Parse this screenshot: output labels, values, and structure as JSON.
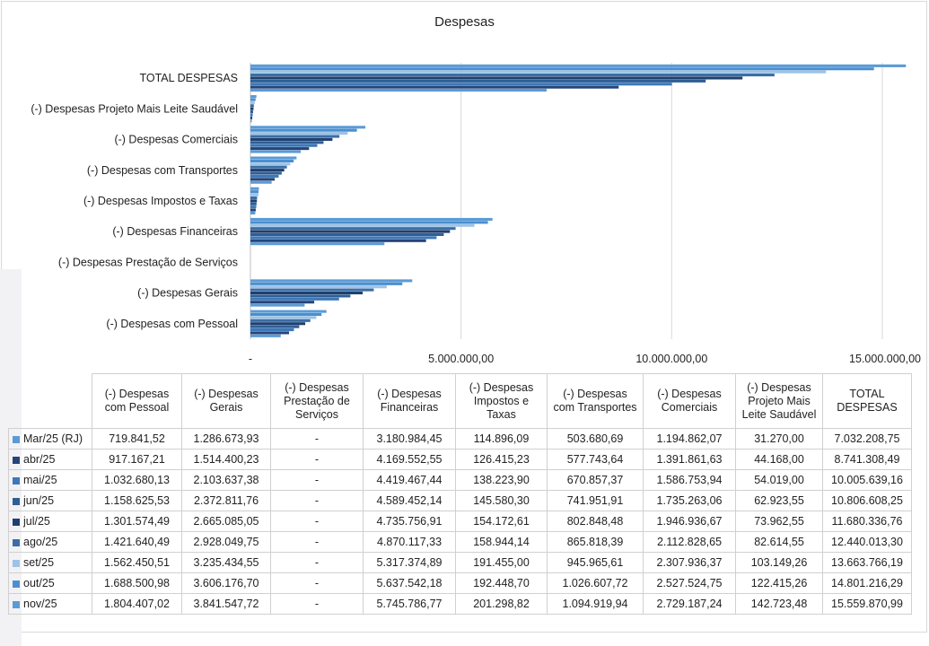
{
  "chart_data": {
    "type": "bar",
    "orientation": "horizontal",
    "title": "Despesas",
    "xlim": [
      0,
      15000000
    ],
    "x_ticks": [
      "-",
      "5.000.000,00",
      "10.000.000,00",
      "15.000.000,00"
    ],
    "x_tick_values": [
      0,
      5000000,
      10000000,
      15000000
    ],
    "grid": true,
    "legend_position": "in-table",
    "categories": [
      "(-) Despesas com Pessoal",
      "(-) Despesas Gerais",
      "(-) Despesas Prestação de Serviços",
      "(-) Despesas Financeiras",
      "(-) Despesas Impostos e Taxas",
      "(-) Despesas com Transportes",
      "(-) Despesas Comerciais",
      "(-) Despesas Projeto Mais Leite Saudável",
      "TOTAL DESPESAS"
    ],
    "series": [
      {
        "name": "Mar/25 (RJ)",
        "color": "#5b9bd5",
        "values": [
          719841.52,
          1286673.93,
          0,
          3180984.45,
          114896.09,
          503680.69,
          1194862.07,
          31270.0,
          7032208.75
        ],
        "labels": [
          "719.841,52",
          "1.286.673,93",
          "-",
          "3.180.984,45",
          "114.896,09",
          "503.680,69",
          "1.194.862,07",
          "31.270,00",
          "7.032.208,75"
        ]
      },
      {
        "name": "abr/25",
        "color": "#264478",
        "values": [
          917167.21,
          1514400.23,
          0,
          4169552.55,
          126415.23,
          577743.64,
          1391861.63,
          44168.0,
          8741308.49
        ],
        "labels": [
          "917.167,21",
          "1.514.400,23",
          "-",
          "4.169.552,55",
          "126.415,23",
          "577.743,64",
          "1.391.861,63",
          "44.168,00",
          "8.741.308,49"
        ]
      },
      {
        "name": "mai/25",
        "color": "#3d78b8",
        "values": [
          1032680.13,
          2103637.38,
          0,
          4419467.44,
          138223.9,
          670857.37,
          1586753.94,
          54019.0,
          10005639.16
        ],
        "labels": [
          "1.032.680,13",
          "2.103.637,38",
          "-",
          "4.419.467,44",
          "138.223,90",
          "670.857,37",
          "1.586.753,94",
          "54.019,00",
          "10.005.639,16"
        ]
      },
      {
        "name": "jun/25",
        "color": "#2f5e95",
        "values": [
          1158625.53,
          2372811.76,
          0,
          4589452.14,
          145580.3,
          741951.91,
          1735263.06,
          62923.55,
          10806608.25
        ],
        "labels": [
          "1.158.625,53",
          "2.372.811,76",
          "-",
          "4.589.452,14",
          "145.580,30",
          "741.951,91",
          "1.735.263,06",
          "62.923,55",
          "10.806.608,25"
        ]
      },
      {
        "name": "jul/25",
        "color": "#1f3f6e",
        "values": [
          1301574.49,
          2665085.05,
          0,
          4735756.91,
          154172.61,
          802848.48,
          1946936.67,
          73962.55,
          11680336.76
        ],
        "labels": [
          "1.301.574,49",
          "2.665.085,05",
          "-",
          "4.735.756,91",
          "154.172,61",
          "802.848,48",
          "1.946.936,67",
          "73.962,55",
          "11.680.336,76"
        ]
      },
      {
        "name": "ago/25",
        "color": "#3a6ea5",
        "values": [
          1421640.49,
          2928049.75,
          0,
          4870117.33,
          158944.14,
          865818.39,
          2112828.65,
          82614.55,
          12440013.3
        ],
        "labels": [
          "1.421.640,49",
          "2.928.049,75",
          "-",
          "4.870.117,33",
          "158.944,14",
          "865.818,39",
          "2.112.828,65",
          "82.614,55",
          "12.440.013,30"
        ]
      },
      {
        "name": "set/25",
        "color": "#9dc3e6",
        "values": [
          1562450.51,
          3235434.55,
          0,
          5317374.89,
          191455.0,
          945965.61,
          2307936.37,
          103149.26,
          13663766.19
        ],
        "labels": [
          "1.562.450,51",
          "3.235.434,55",
          "-",
          "5.317.374,89",
          "191.455,00",
          "945.965,61",
          "2.307.936,37",
          "103.149,26",
          "13.663.766,19"
        ]
      },
      {
        "name": "out/25",
        "color": "#4a8fd0",
        "values": [
          1688500.98,
          3606176.7,
          0,
          5637542.18,
          192448.7,
          1026607.72,
          2527524.75,
          122415.26,
          14801216.29
        ],
        "labels": [
          "1.688.500,98",
          "3.606.176,70",
          "-",
          "5.637.542,18",
          "192.448,70",
          "1.026.607,72",
          "2.527.524,75",
          "122.415,26",
          "14.801.216,29"
        ]
      },
      {
        "name": "nov/25",
        "color": "#5b9bd5",
        "values": [
          1804407.02,
          3841547.72,
          0,
          5745786.77,
          201298.82,
          1094919.94,
          2729187.24,
          142723.48,
          15559870.99
        ],
        "labels": [
          "1.804.407,02",
          "3.841.547,72",
          "-",
          "5.745.786,77",
          "201.298,82",
          "1.094.919,94",
          "2.729.187,24",
          "142.723,48",
          "15.559.870,99"
        ]
      }
    ]
  },
  "table": {
    "headers": [
      "(-) Despesas com Pessoal",
      "(-) Despesas Gerais",
      "(-) Despesas Prestação de Serviços",
      "(-) Despesas Financeiras",
      "(-) Despesas Impostos e Taxas",
      "(-) Despesas com Transportes",
      "(-) Despesas Comerciais",
      "(-) Despesas Projeto Mais Leite Saudável",
      "TOTAL DESPESAS"
    ]
  }
}
